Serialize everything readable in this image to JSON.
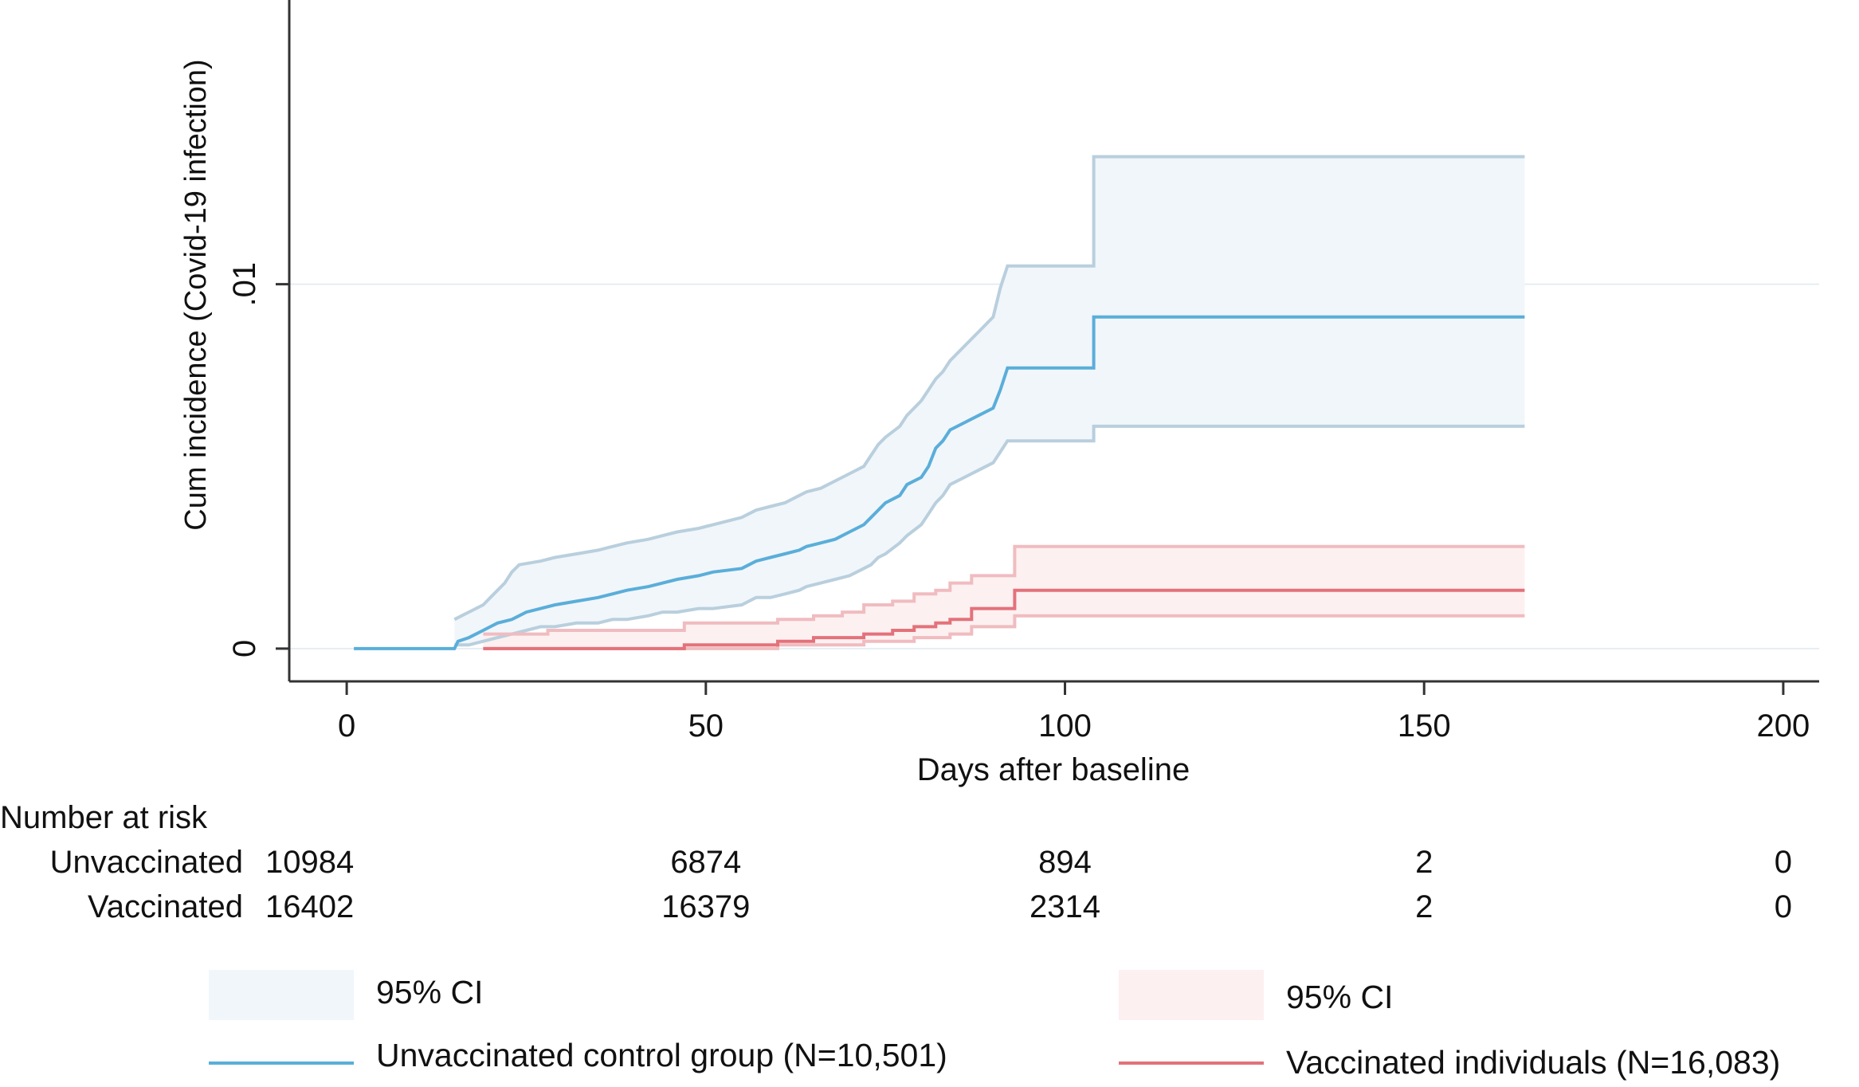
{
  "chart_data": {
    "type": "line",
    "xlabel": "Days after baseline",
    "ylabel": "Cum incidence (Covid-19 infection)",
    "xlim": [
      -8,
      205
    ],
    "ylim": [
      -0.0009,
      0.0178
    ],
    "xticks": [
      0,
      50,
      100,
      150,
      200
    ],
    "xtick_labels": [
      "0",
      "50",
      "100",
      "150",
      "200"
    ],
    "yticks": [
      0,
      0.01
    ],
    "ytick_labels": [
      "0",
      ".01"
    ],
    "grid": "horizontal",
    "series": [
      {
        "name": "Unvaccinated control group (N=10,501)",
        "color": "#5aaed9",
        "ci_fill": "#f1f6fb",
        "ci_line": "#b9cfdd",
        "points": [
          [
            1,
            0
          ],
          [
            15,
            0
          ],
          [
            15.5,
            0.0002
          ],
          [
            17,
            0.0003
          ],
          [
            18,
            0.0004
          ],
          [
            19,
            0.0005
          ],
          [
            20,
            0.0006
          ],
          [
            21,
            0.0007
          ],
          [
            23,
            0.0008
          ],
          [
            24,
            0.0009
          ],
          [
            25,
            0.001
          ],
          [
            27,
            0.0011
          ],
          [
            29,
            0.0012
          ],
          [
            32,
            0.0013
          ],
          [
            35,
            0.0014
          ],
          [
            37,
            0.0015
          ],
          [
            39,
            0.0016
          ],
          [
            42,
            0.0017
          ],
          [
            44,
            0.0018
          ],
          [
            46,
            0.0019
          ],
          [
            49,
            0.002
          ],
          [
            51,
            0.0021
          ],
          [
            55,
            0.0022
          ],
          [
            56,
            0.0023
          ],
          [
            57,
            0.0024
          ],
          [
            59,
            0.0025
          ],
          [
            61,
            0.0026
          ],
          [
            63,
            0.0027
          ],
          [
            64,
            0.0028
          ],
          [
            66,
            0.0029
          ],
          [
            68,
            0.003
          ],
          [
            70,
            0.0032
          ],
          [
            72,
            0.0034
          ],
          [
            73,
            0.0036
          ],
          [
            74,
            0.0038
          ],
          [
            75,
            0.004
          ],
          [
            77,
            0.0042
          ],
          [
            78,
            0.0045
          ],
          [
            80,
            0.0047
          ],
          [
            81,
            0.005
          ],
          [
            82,
            0.0055
          ],
          [
            83,
            0.0057
          ],
          [
            84,
            0.006
          ],
          [
            86,
            0.0062
          ],
          [
            88,
            0.0064
          ],
          [
            90,
            0.0066
          ],
          [
            91,
            0.0071
          ],
          [
            92,
            0.0077
          ],
          [
            104,
            0.0077
          ],
          [
            104,
            0.0091
          ],
          [
            164,
            0.0091
          ]
        ],
        "ci_upper": [
          [
            15,
            0.0008
          ],
          [
            16,
            0.0009
          ],
          [
            17,
            0.001
          ],
          [
            18,
            0.0011
          ],
          [
            19,
            0.0012
          ],
          [
            20,
            0.0014
          ],
          [
            21,
            0.0016
          ],
          [
            22,
            0.0018
          ],
          [
            23,
            0.0021
          ],
          [
            24,
            0.0023
          ],
          [
            27,
            0.0024
          ],
          [
            29,
            0.0025
          ],
          [
            32,
            0.0026
          ],
          [
            35,
            0.0027
          ],
          [
            37,
            0.0028
          ],
          [
            39,
            0.0029
          ],
          [
            42,
            0.003
          ],
          [
            44,
            0.0031
          ],
          [
            46,
            0.0032
          ],
          [
            49,
            0.0033
          ],
          [
            51,
            0.0034
          ],
          [
            55,
            0.0036
          ],
          [
            56,
            0.0037
          ],
          [
            57,
            0.0038
          ],
          [
            59,
            0.0039
          ],
          [
            61,
            0.004
          ],
          [
            63,
            0.0042
          ],
          [
            64,
            0.0043
          ],
          [
            66,
            0.0044
          ],
          [
            68,
            0.0046
          ],
          [
            70,
            0.0048
          ],
          [
            72,
            0.005
          ],
          [
            73,
            0.0053
          ],
          [
            74,
            0.0056
          ],
          [
            75,
            0.0058
          ],
          [
            77,
            0.0061
          ],
          [
            78,
            0.0064
          ],
          [
            80,
            0.0068
          ],
          [
            81,
            0.0071
          ],
          [
            82,
            0.0074
          ],
          [
            83,
            0.0076
          ],
          [
            84,
            0.0079
          ],
          [
            86,
            0.0083
          ],
          [
            88,
            0.0087
          ],
          [
            90,
            0.0091
          ],
          [
            91,
            0.0099
          ],
          [
            92,
            0.0105
          ],
          [
            104,
            0.0105
          ],
          [
            104,
            0.0135
          ],
          [
            164,
            0.0135
          ]
        ],
        "ci_lower": [
          [
            15,
            0.0001
          ],
          [
            17,
            0.0001
          ],
          [
            19,
            0.0002
          ],
          [
            21,
            0.0003
          ],
          [
            23,
            0.0004
          ],
          [
            25,
            0.0005
          ],
          [
            27,
            0.0006
          ],
          [
            29,
            0.0006
          ],
          [
            32,
            0.0007
          ],
          [
            35,
            0.0007
          ],
          [
            37,
            0.0008
          ],
          [
            39,
            0.0008
          ],
          [
            42,
            0.0009
          ],
          [
            44,
            0.001
          ],
          [
            46,
            0.001
          ],
          [
            49,
            0.0011
          ],
          [
            51,
            0.0011
          ],
          [
            55,
            0.0012
          ],
          [
            56,
            0.0013
          ],
          [
            57,
            0.0014
          ],
          [
            59,
            0.0014
          ],
          [
            61,
            0.0015
          ],
          [
            63,
            0.0016
          ],
          [
            64,
            0.0017
          ],
          [
            66,
            0.0018
          ],
          [
            68,
            0.0019
          ],
          [
            70,
            0.002
          ],
          [
            72,
            0.0022
          ],
          [
            73,
            0.0023
          ],
          [
            74,
            0.0025
          ],
          [
            75,
            0.0026
          ],
          [
            77,
            0.0029
          ],
          [
            78,
            0.0031
          ],
          [
            80,
            0.0034
          ],
          [
            81,
            0.0037
          ],
          [
            82,
            0.004
          ],
          [
            83,
            0.0042
          ],
          [
            84,
            0.0045
          ],
          [
            86,
            0.0047
          ],
          [
            88,
            0.0049
          ],
          [
            90,
            0.0051
          ],
          [
            91,
            0.0054
          ],
          [
            92,
            0.0057
          ],
          [
            104,
            0.0057
          ],
          [
            104,
            0.0061
          ],
          [
            164,
            0.0061
          ]
        ]
      },
      {
        "name": "Vaccinated individuals (N=16,083)",
        "color": "#e3727a",
        "ci_fill": "#fdf0f1",
        "ci_line": "#f0bcc0",
        "points": [
          [
            19,
            0
          ],
          [
            47,
            0
          ],
          [
            47,
            0.0001
          ],
          [
            60,
            0.0001
          ],
          [
            60,
            0.0002
          ],
          [
            65,
            0.0002
          ],
          [
            65,
            0.0003
          ],
          [
            72,
            0.0003
          ],
          [
            72,
            0.0004
          ],
          [
            76,
            0.0004
          ],
          [
            76,
            0.0005
          ],
          [
            79,
            0.0005
          ],
          [
            79,
            0.0006
          ],
          [
            82,
            0.0006
          ],
          [
            82,
            0.0007
          ],
          [
            84,
            0.0007
          ],
          [
            84,
            0.0008
          ],
          [
            87,
            0.0008
          ],
          [
            87,
            0.0011
          ],
          [
            93,
            0.0011
          ],
          [
            93,
            0.0016
          ],
          [
            164,
            0.0016
          ]
        ],
        "ci_upper": [
          [
            19,
            0.0004
          ],
          [
            28,
            0.0004
          ],
          [
            28,
            0.0005
          ],
          [
            47,
            0.0005
          ],
          [
            47,
            0.0007
          ],
          [
            60,
            0.0007
          ],
          [
            60,
            0.0008
          ],
          [
            65,
            0.0008
          ],
          [
            65,
            0.0009
          ],
          [
            69,
            0.0009
          ],
          [
            69,
            0.001
          ],
          [
            72,
            0.001
          ],
          [
            72,
            0.0012
          ],
          [
            76,
            0.0012
          ],
          [
            76,
            0.0013
          ],
          [
            79,
            0.0013
          ],
          [
            79,
            0.0015
          ],
          [
            82,
            0.0015
          ],
          [
            82,
            0.0016
          ],
          [
            84,
            0.0016
          ],
          [
            84,
            0.0018
          ],
          [
            87,
            0.0018
          ],
          [
            87,
            0.002
          ],
          [
            93,
            0.002
          ],
          [
            93,
            0.0028
          ],
          [
            164,
            0.0028
          ]
        ],
        "ci_lower": [
          [
            19,
            0
          ],
          [
            60,
            0
          ],
          [
            60,
            0.0001
          ],
          [
            72,
            0.0001
          ],
          [
            72,
            0.0002
          ],
          [
            79,
            0.0002
          ],
          [
            79,
            0.0003
          ],
          [
            84,
            0.0003
          ],
          [
            84,
            0.0004
          ],
          [
            87,
            0.0004
          ],
          [
            87,
            0.0006
          ],
          [
            93,
            0.0006
          ],
          [
            93,
            0.0009
          ],
          [
            164,
            0.0009
          ]
        ]
      }
    ],
    "risk_table": {
      "title": "Number at risk",
      "times": [
        0,
        50,
        100,
        150,
        200
      ],
      "rows": [
        {
          "label": "Unvaccinated",
          "values": [
            "10984",
            "6874",
            "894",
            "2",
            "0"
          ]
        },
        {
          "label": "Vaccinated",
          "values": [
            "16402",
            "16379",
            "2314",
            "2",
            "0"
          ]
        }
      ]
    },
    "legend": {
      "position": "bottom",
      "items": [
        {
          "label": "95% CI",
          "kind": "band",
          "series": 0
        },
        {
          "label": "Unvaccinated control group (N=10,501)",
          "kind": "line",
          "series": 0
        },
        {
          "label": "95% CI",
          "kind": "band",
          "series": 1
        },
        {
          "label": "Vaccinated individuals (N=16,083)",
          "kind": "line",
          "series": 1
        }
      ]
    }
  }
}
